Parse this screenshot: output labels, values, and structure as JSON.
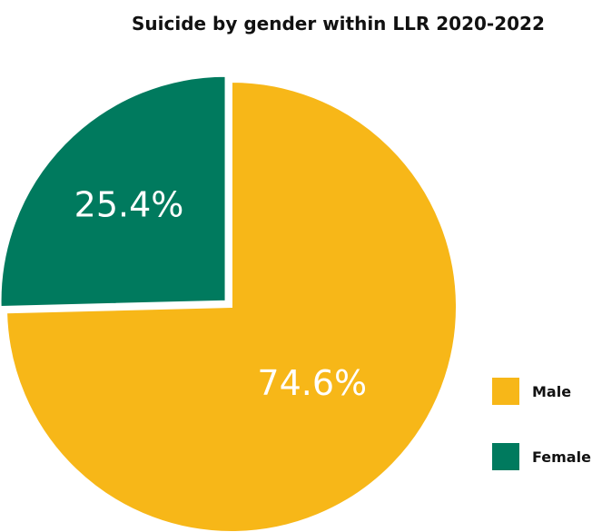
{
  "chart_data": {
    "type": "pie",
    "title": "Suicide by gender within LLR 2020-2022",
    "slices": [
      {
        "name": "Male",
        "value": 74.6,
        "label": "74.6%",
        "color": "#F7B718"
      },
      {
        "name": "Female",
        "value": 25.4,
        "label": "25.4%",
        "color": "#007A5E"
      }
    ],
    "start_angle_deg": 0,
    "direction": "clockwise",
    "exploded_slice": "Female",
    "legend_placement": "bottom-right"
  }
}
